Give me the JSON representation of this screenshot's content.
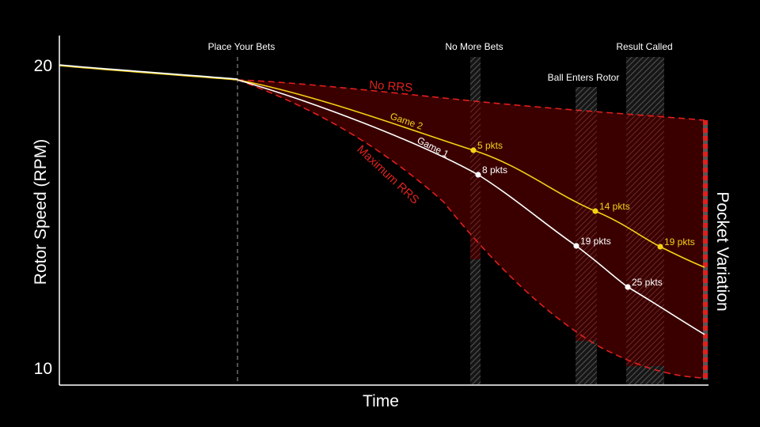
{
  "chart_data": {
    "type": "line",
    "xlabel": "Time",
    "ylabel": "Rotor Speed (RPM)",
    "right_label": "Pocket Variation",
    "y_ticks": [
      "20",
      "10"
    ],
    "ylim": [
      10,
      20
    ],
    "phases": [
      {
        "label": "Place Your Bets"
      },
      {
        "label": "No More Bets"
      },
      {
        "label": "Ball Enters Rotor"
      },
      {
        "label": "Result Called"
      }
    ],
    "boundary_curves": [
      {
        "label": "No RRS",
        "color": "#e0201c"
      },
      {
        "label": "Maximum RRS",
        "color": "#e0201c"
      }
    ],
    "series": [
      {
        "name": "Game 2",
        "color": "#f5d116",
        "markers": [
          {
            "label": "5 pkts"
          },
          {
            "label": "14 pkts"
          },
          {
            "label": "19 pkts"
          }
        ]
      },
      {
        "name": "Game 1",
        "color": "#ffffff",
        "markers": [
          {
            "label": "8 pkts"
          },
          {
            "label": "19 pkts"
          },
          {
            "label": "25 pkts"
          }
        ]
      }
    ],
    "colors": {
      "background": "#000000",
      "axis": "#ffffff",
      "band_fill": "#3a0000",
      "boundary": "#e0201c"
    }
  }
}
